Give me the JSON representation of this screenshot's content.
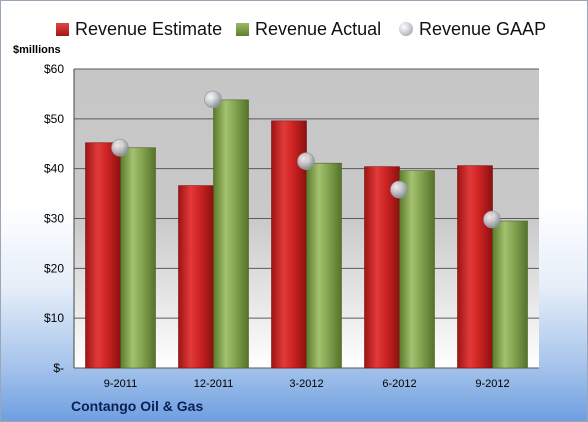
{
  "legend": {
    "estimate": "Revenue Estimate",
    "actual": "Revenue Actual",
    "gaap": "Revenue GAAP"
  },
  "units_label": "$millions",
  "company": "Contango Oil & Gas",
  "colors": {
    "estimate": "#c42020",
    "actual": "#7a9a45",
    "gaap": "#c3c7cc",
    "plot_bg": "#c8c8c8",
    "grid": "#5a5a5a"
  },
  "chart_data": {
    "type": "bar",
    "categories": [
      "9-2011",
      "12-2011",
      "3-2012",
      "6-2012",
      "9-2012"
    ],
    "series": [
      {
        "name": "Revenue Estimate",
        "kind": "bar",
        "values": [
          45.2,
          36.6,
          49.6,
          40.4,
          40.6
        ]
      },
      {
        "name": "Revenue Actual",
        "kind": "bar",
        "values": [
          44.2,
          53.8,
          41.1,
          39.6,
          29.5
        ]
      },
      {
        "name": "Revenue GAAP",
        "kind": "marker",
        "values": [
          44.2,
          53.9,
          41.5,
          35.8,
          29.8
        ]
      }
    ],
    "yticks": [
      "$-",
      "$10",
      "$20",
      "$30",
      "$40",
      "$50",
      "$60"
    ],
    "ylim": [
      0,
      60
    ],
    "ylabel": "$millions",
    "grid": true,
    "legend_position": "top"
  }
}
